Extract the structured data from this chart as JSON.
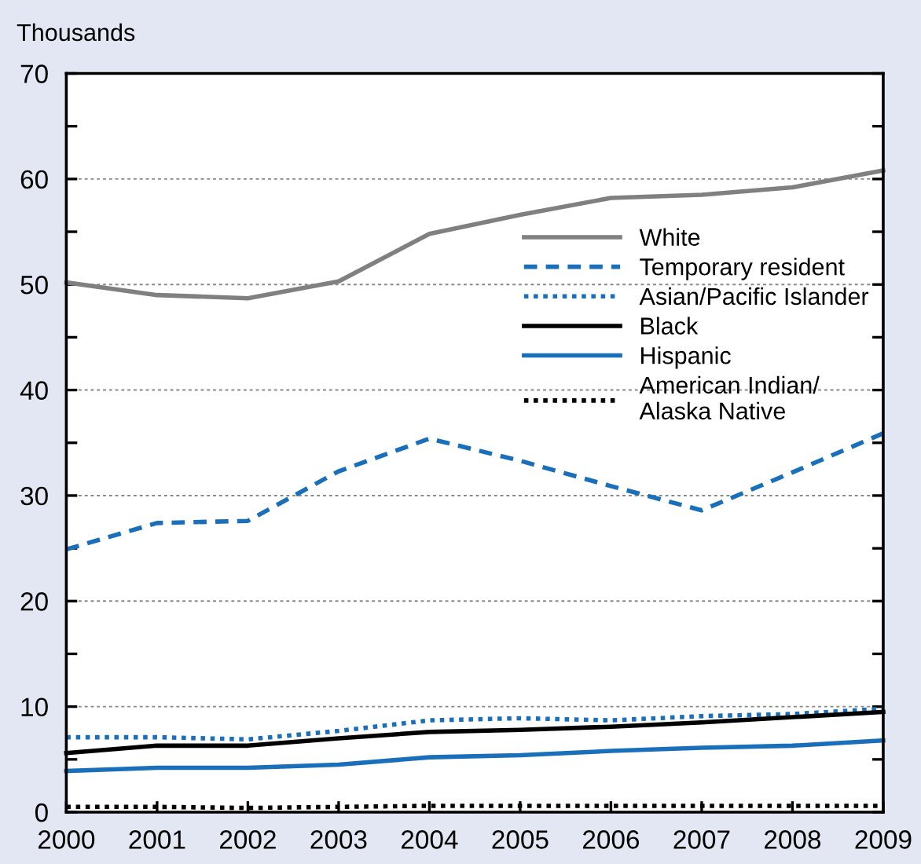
{
  "chart_data": {
    "type": "line",
    "ylabel": "Thousands",
    "x": [
      2000,
      2001,
      2002,
      2003,
      2004,
      2005,
      2006,
      2007,
      2008,
      2009
    ],
    "xlim": [
      2000,
      2009
    ],
    "xticks": [
      2000,
      2001,
      2002,
      2003,
      2004,
      2005,
      2006,
      2007,
      2008,
      2009
    ],
    "ylim": [
      0,
      70
    ],
    "yticks": [
      0,
      {
        "value": 5,
        "label": null
      },
      10,
      {
        "value": 15,
        "label": null
      },
      20,
      {
        "value": 25,
        "label": null
      },
      30,
      {
        "value": 35,
        "label": null
      },
      40,
      {
        "value": 45,
        "label": null
      },
      50,
      {
        "value": 55,
        "label": null
      },
      60,
      {
        "value": 65,
        "label": null
      },
      70
    ],
    "grid": "y",
    "legend": "top right",
    "marker": "none",
    "series": [
      {
        "name": "White",
        "color": "#808080",
        "line_style": "solid",
        "values": [
          50.2,
          49.0,
          48.7,
          50.3,
          54.8,
          56.6,
          58.2,
          58.5,
          59.2,
          60.8
        ]
      },
      {
        "name": "Temporary resident",
        "color": "#1a6fba",
        "line_style": "dashed",
        "values": [
          24.9,
          27.4,
          27.6,
          32.3,
          35.4,
          33.3,
          30.9,
          28.6,
          32.2,
          35.9
        ]
      },
      {
        "name": "Asian/Pacific Islander",
        "color": "#1a6fba",
        "line_style": "dotted",
        "values": [
          7.1,
          7.1,
          6.9,
          7.7,
          8.7,
          8.9,
          8.7,
          9.1,
          9.3,
          9.8
        ]
      },
      {
        "name": "Black",
        "color": "#000000",
        "line_style": "solid",
        "values": [
          5.6,
          6.3,
          6.3,
          7.0,
          7.6,
          7.8,
          8.1,
          8.5,
          9.0,
          9.5
        ]
      },
      {
        "name": "Hispanic",
        "color": "#1a6fba",
        "line_style": "solid",
        "values": [
          3.9,
          4.2,
          4.2,
          4.5,
          5.2,
          5.4,
          5.8,
          6.1,
          6.3,
          6.8
        ]
      },
      {
        "name": "American Indian/\nAlaska Native",
        "color": "#000000",
        "line_style": "dotted",
        "values": [
          0.5,
          0.5,
          0.4,
          0.5,
          0.6,
          0.6,
          0.6,
          0.6,
          0.6,
          0.6
        ]
      }
    ]
  }
}
